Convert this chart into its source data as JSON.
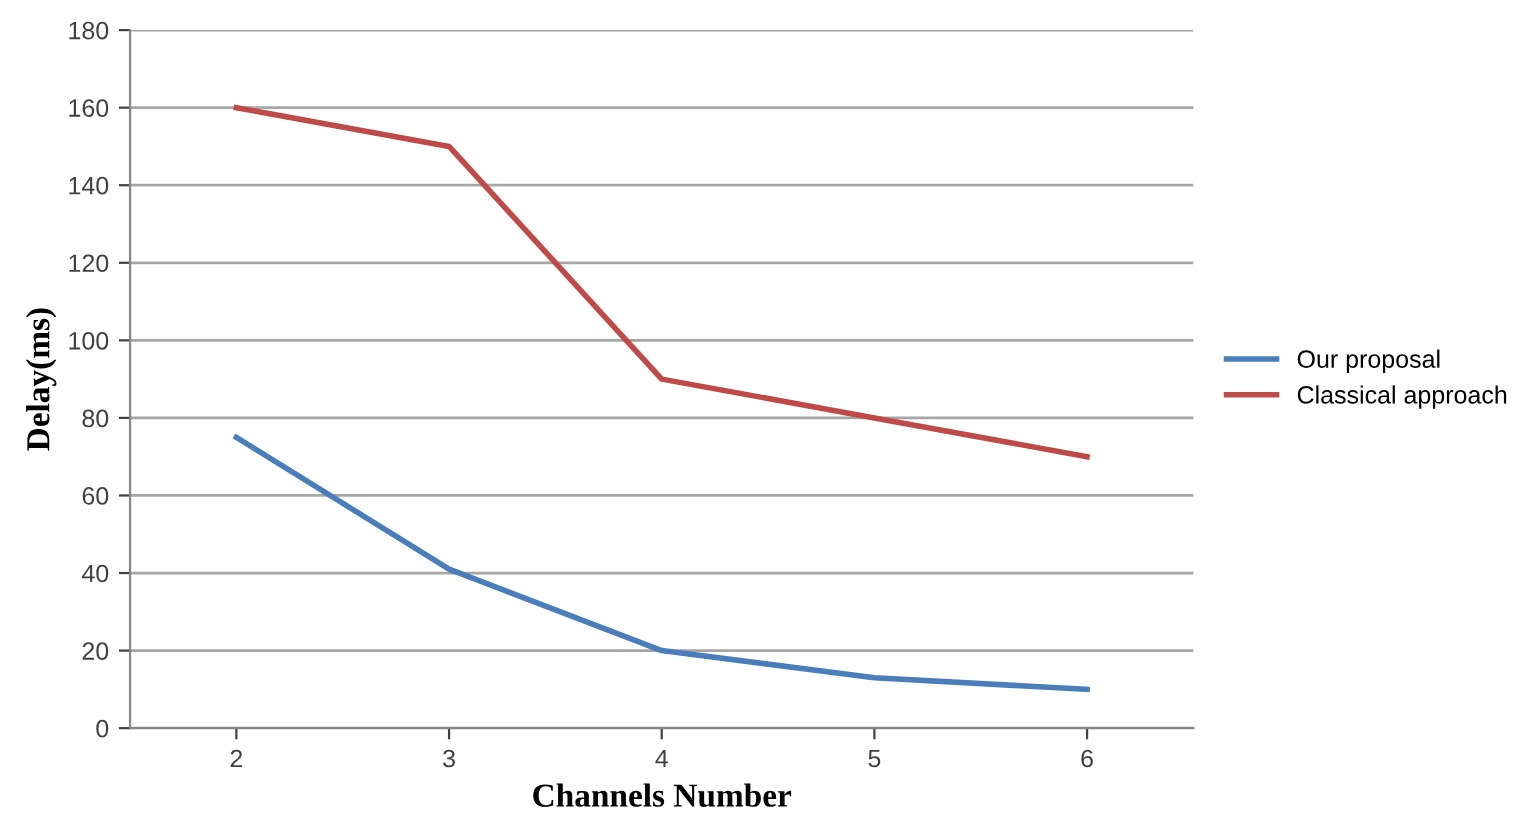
{
  "chart_data": {
    "type": "line",
    "xlabel": "Channels Number",
    "ylabel": "Delay(ms)",
    "categories": [
      "2",
      "3",
      "4",
      "5",
      "6"
    ],
    "series": [
      {
        "name": "Our proposal",
        "color": "#4a7ebb",
        "values": [
          75,
          41,
          20,
          13,
          10
        ]
      },
      {
        "name": "Classical approach",
        "color": "#be4b48",
        "values": [
          160,
          150,
          90,
          80,
          70
        ]
      }
    ],
    "ylim": [
      0,
      180
    ],
    "yticks": [
      0,
      20,
      40,
      60,
      80,
      100,
      120,
      140,
      160,
      180
    ],
    "grid": "y",
    "legend": "right",
    "marker": "none",
    "line_style": "solid"
  }
}
